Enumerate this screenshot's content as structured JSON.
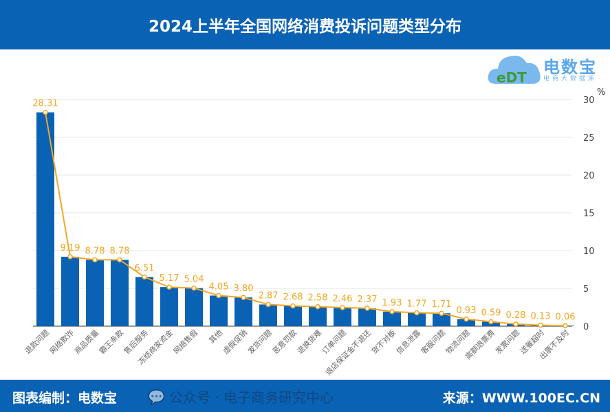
{
  "header": {
    "title": "2024上半年全国网络消费投诉问题类型分布"
  },
  "logo": {
    "name": "电数宝",
    "sub": "电商大数据库",
    "mark": "eDT"
  },
  "footer": {
    "compiler": "图表编制：电数宝",
    "source": "来源：WWW.100EC.CN",
    "watermark": "公众号 · 电子商务研究中心"
  },
  "colors": {
    "bar": "#0a62b4",
    "line": "#f5a623",
    "label": "#f5a623",
    "header": "#0a62b4"
  },
  "chart_data": {
    "type": "bar+line",
    "title": "2024上半年全国网络消费投诉问题类型分布",
    "ylabel": "%",
    "ylim": [
      0,
      30
    ],
    "yticks": [
      0,
      5,
      10,
      15,
      20,
      25,
      30
    ],
    "y_axis_position": "right",
    "grid": true,
    "categories": [
      "退款问题",
      "网络欺诈",
      "商品质量",
      "霸王条款",
      "售后服务",
      "冻结商家资金",
      "网络售假",
      "其他",
      "虚假促销",
      "发货问题",
      "恶意罚款",
      "退换货难",
      "订单问题",
      "退店保证金不退还",
      "货不对板",
      "信息泄露",
      "客服问题",
      "物流问题",
      "高额退票费",
      "发票问题",
      "送餐超时",
      "出票不及时"
    ],
    "values": [
      28.31,
      9.19,
      8.78,
      8.78,
      6.51,
      5.17,
      5.04,
      4.05,
      3.8,
      2.87,
      2.68,
      2.58,
      2.46,
      2.37,
      1.93,
      1.77,
      1.71,
      0.93,
      0.59,
      0.28,
      0.13,
      0.06
    ],
    "value_labels": [
      "28.31",
      "9.19",
      "8.78",
      "8.78",
      "6.51",
      "5.17",
      "5.04",
      "4.05",
      "3.80",
      "2.87",
      "2.68",
      "2.58",
      "2.46",
      "2.37",
      "1.93",
      "1.77",
      "1.71",
      "0.93",
      "0.59",
      "0.28",
      "0.13",
      "0.06"
    ]
  }
}
